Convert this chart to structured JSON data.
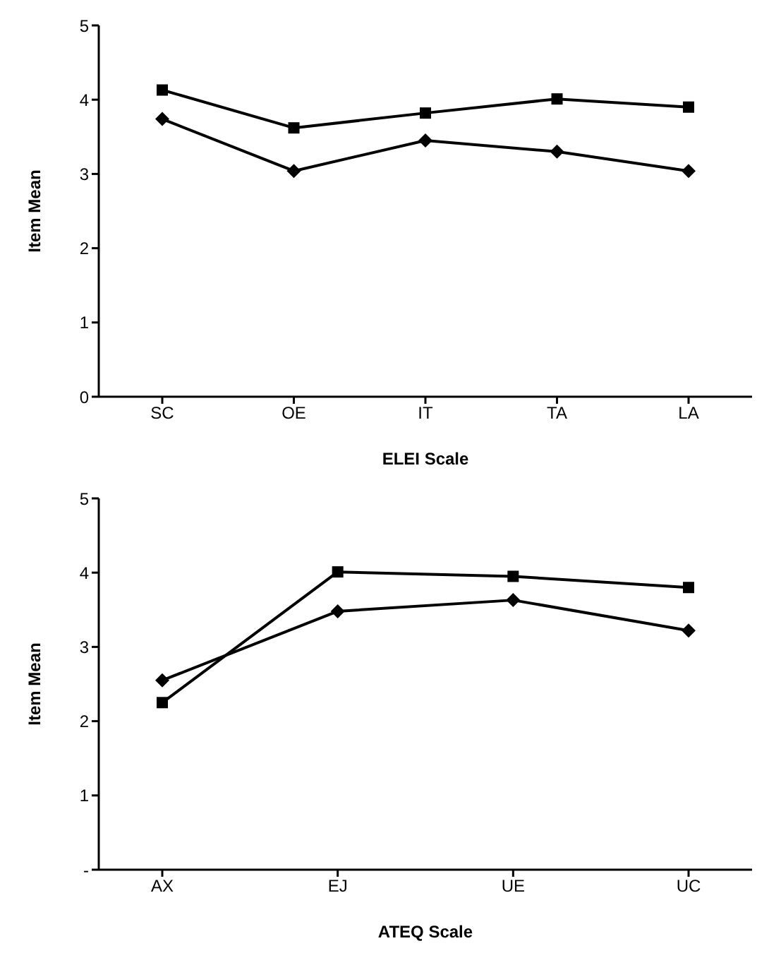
{
  "chart_data": [
    {
      "type": "line",
      "xlabel": "ELEI Scale",
      "ylabel": "Item Mean",
      "categories": [
        "SC",
        "OE",
        "IT",
        "TA",
        "LA"
      ],
      "series": [
        {
          "color": "#000000",
          "marker": "square",
          "values": [
            4.13,
            3.62,
            3.82,
            4.01,
            3.9
          ]
        },
        {
          "color": "#000000",
          "marker": "diamond",
          "values": [
            3.74,
            3.04,
            3.45,
            3.3,
            3.04
          ]
        }
      ],
      "ylim": [
        0,
        5
      ],
      "yticks": [
        0,
        1,
        2,
        3,
        4,
        5
      ],
      "grid": false,
      "legend": false
    },
    {
      "type": "line",
      "xlabel": "ATEQ Scale",
      "ylabel": "Item Mean",
      "categories": [
        "AX",
        "EJ",
        "UE",
        "UC"
      ],
      "series": [
        {
          "color": "#000000",
          "marker": "square",
          "values": [
            2.25,
            4.01,
            3.95,
            3.8
          ]
        },
        {
          "color": "#000000",
          "marker": "diamond",
          "values": [
            2.55,
            3.48,
            3.63,
            3.22
          ]
        }
      ],
      "ylim": [
        0,
        5
      ],
      "yticks": [
        {
          "value": 0,
          "label": "-"
        },
        1,
        2,
        3,
        4,
        5
      ],
      "grid": false,
      "legend": false
    }
  ]
}
